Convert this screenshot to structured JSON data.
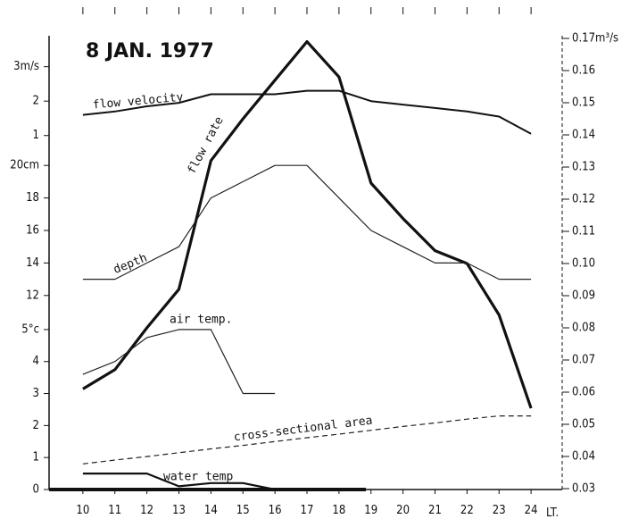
{
  "chart_data": {
    "type": "line",
    "title": "8 JAN. 1977",
    "xlabel": "LT.",
    "x": [
      10,
      11,
      12,
      13,
      14,
      15,
      16,
      17,
      18,
      19,
      20,
      21,
      22,
      23,
      24
    ],
    "xlim": [
      9,
      25
    ],
    "xticks": [
      10,
      11,
      12,
      13,
      14,
      15,
      16,
      17,
      18,
      19,
      20,
      21,
      22,
      23,
      24
    ],
    "y_axes": {
      "velocity": {
        "ylim": [
          0.5,
          3.9
        ],
        "yticks": [
          {
            "value": 3,
            "label": "3m/s"
          },
          2,
          1
        ]
      },
      "depth": {
        "ylim": [
          11,
          21
        ],
        "yticks": [
          {
            "value": 20,
            "label": "20cm"
          },
          18,
          16,
          14,
          12
        ]
      },
      "temp": {
        "ylim": [
          0,
          5.5
        ],
        "yticks": [
          {
            "value": 5,
            "label": "5°c"
          },
          4,
          3,
          2,
          1,
          0
        ]
      }
    },
    "y2lim": [
      0.03,
      0.17
    ],
    "y2ticks": [
      {
        "value": 0.17,
        "label": "0.17m³/s"
      },
      0.16,
      0.15,
      0.14,
      0.13,
      0.12,
      0.11,
      {
        "value": 0.1,
        "label": "0.10"
      },
      0.09,
      0.08,
      0.07,
      0.06,
      0.05,
      0.04,
      0.03
    ],
    "series": [
      {
        "name": "flow velocity",
        "axis": "velocity",
        "color": "#111111",
        "values": [
          1.6,
          1.7,
          1.85,
          1.95,
          2.2,
          2.2,
          2.2,
          2.3,
          2.3,
          2.0,
          1.9,
          1.8,
          1.7,
          1.55,
          1.05
        ]
      },
      {
        "name": "flow rate",
        "axis": "y2",
        "color": "#111111",
        "values": [
          0.061,
          0.067,
          0.08,
          0.092,
          0.132,
          0.145,
          0.157,
          0.169,
          0.158,
          0.125,
          0.114,
          0.104,
          0.1,
          0.084,
          0.055
        ]
      },
      {
        "name": "depth",
        "axis": "depth",
        "color": "#222222",
        "values": [
          13,
          13,
          14,
          15,
          18,
          19,
          20,
          20,
          18,
          16,
          15,
          14,
          14,
          13,
          13
        ]
      },
      {
        "name": "air temp.",
        "axis": "temp",
        "color": "#222222",
        "values": [
          3.6,
          4.0,
          4.75,
          5.0,
          5.0,
          3.0,
          3.0,
          null,
          null,
          null,
          null,
          null,
          null,
          null,
          null
        ]
      },
      {
        "name": "cross-sectional area",
        "axis": "temp",
        "color": "#222222",
        "values": [
          0.8,
          0.92,
          1.03,
          1.15,
          1.27,
          1.38,
          1.5,
          1.62,
          1.73,
          1.85,
          1.97,
          2.08,
          2.2,
          2.3,
          2.3
        ]
      },
      {
        "name": "water temp",
        "axis": "temp",
        "color": "#111111",
        "values": [
          0.5,
          0.5,
          0.5,
          0.1,
          0.2,
          0.2,
          0.0,
          null,
          null,
          null,
          null,
          null,
          null,
          null,
          null
        ]
      }
    ]
  }
}
